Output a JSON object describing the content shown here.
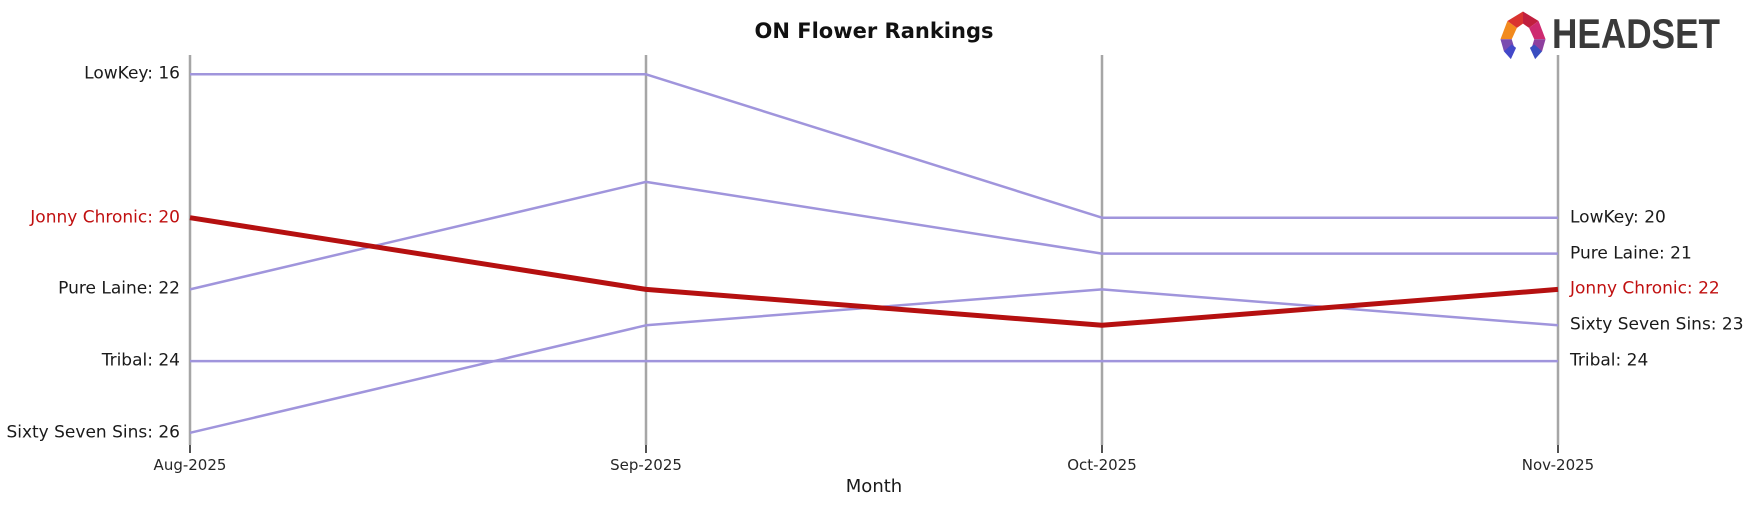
{
  "title": "ON Flower Rankings",
  "logo": {
    "text": "HEADSET",
    "text_color": "#3a3a3a",
    "icon_colors": {
      "left_orange": "#f28a1e",
      "upper_left_red": "#da3430",
      "upper_right_crimson": "#c11f3e",
      "right_magenta": "#ce2a70",
      "right_lower_purple": "#8e3f9e",
      "right_leg_blue": "#3a4ec0",
      "left_lower_purple": "#7a4bb0",
      "left_leg_blue": "#4348c9"
    }
  },
  "chart_data": {
    "type": "line",
    "subtype": "bump-ranking",
    "title": "ON Flower Rankings",
    "xlabel": "Month",
    "x": [
      "Aug-2025",
      "Sep-2025",
      "Oct-2025",
      "Nov-2025"
    ],
    "value_axis": {
      "min": 15.4,
      "max": 26.4,
      "inverted": true,
      "hidden": true
    },
    "grid": false,
    "legend": "none",
    "axis_color": "#a6a6a6",
    "tick_color": "#262626",
    "series": [
      {
        "name": "LowKey",
        "values": [
          16,
          16,
          20,
          20
        ],
        "color": "#a095dc",
        "width": 2.5,
        "highlight": false
      },
      {
        "name": "Pure Laine",
        "values": [
          22,
          19,
          21,
          21
        ],
        "color": "#a095dc",
        "width": 2.5,
        "highlight": false
      },
      {
        "name": "Sixty Seven Sins",
        "values": [
          26,
          23,
          22,
          23
        ],
        "color": "#a095dc",
        "width": 2.5,
        "highlight": false
      },
      {
        "name": "Tribal",
        "values": [
          24,
          24,
          24,
          24
        ],
        "color": "#a095dc",
        "width": 2.5,
        "highlight": false
      },
      {
        "name": "Jonny Chronic",
        "values": [
          20,
          22,
          23,
          22
        ],
        "color": "#b51010",
        "width": 5,
        "highlight": true
      }
    ],
    "start_labels": [
      {
        "text": "LowKey: 16",
        "value": 16,
        "color": "#1a1a1a"
      },
      {
        "text": "Jonny Chronic: 20",
        "value": 20,
        "color": "#c01010"
      },
      {
        "text": "Pure Laine: 22",
        "value": 22,
        "color": "#1a1a1a"
      },
      {
        "text": "Tribal: 24",
        "value": 24,
        "color": "#1a1a1a"
      },
      {
        "text": "Sixty Seven Sins: 26",
        "value": 26,
        "color": "#1a1a1a"
      }
    ],
    "end_labels": [
      {
        "text": "LowKey: 20",
        "value": 20,
        "color": "#1a1a1a"
      },
      {
        "text": "Pure Laine: 21",
        "value": 21,
        "color": "#1a1a1a"
      },
      {
        "text": "Jonny Chronic: 22",
        "value": 22,
        "color": "#c01010"
      },
      {
        "text": "Sixty Seven Sins: 23",
        "value": 23,
        "color": "#1a1a1a"
      },
      {
        "text": "Tribal: 24",
        "value": 24,
        "color": "#1a1a1a"
      }
    ]
  }
}
